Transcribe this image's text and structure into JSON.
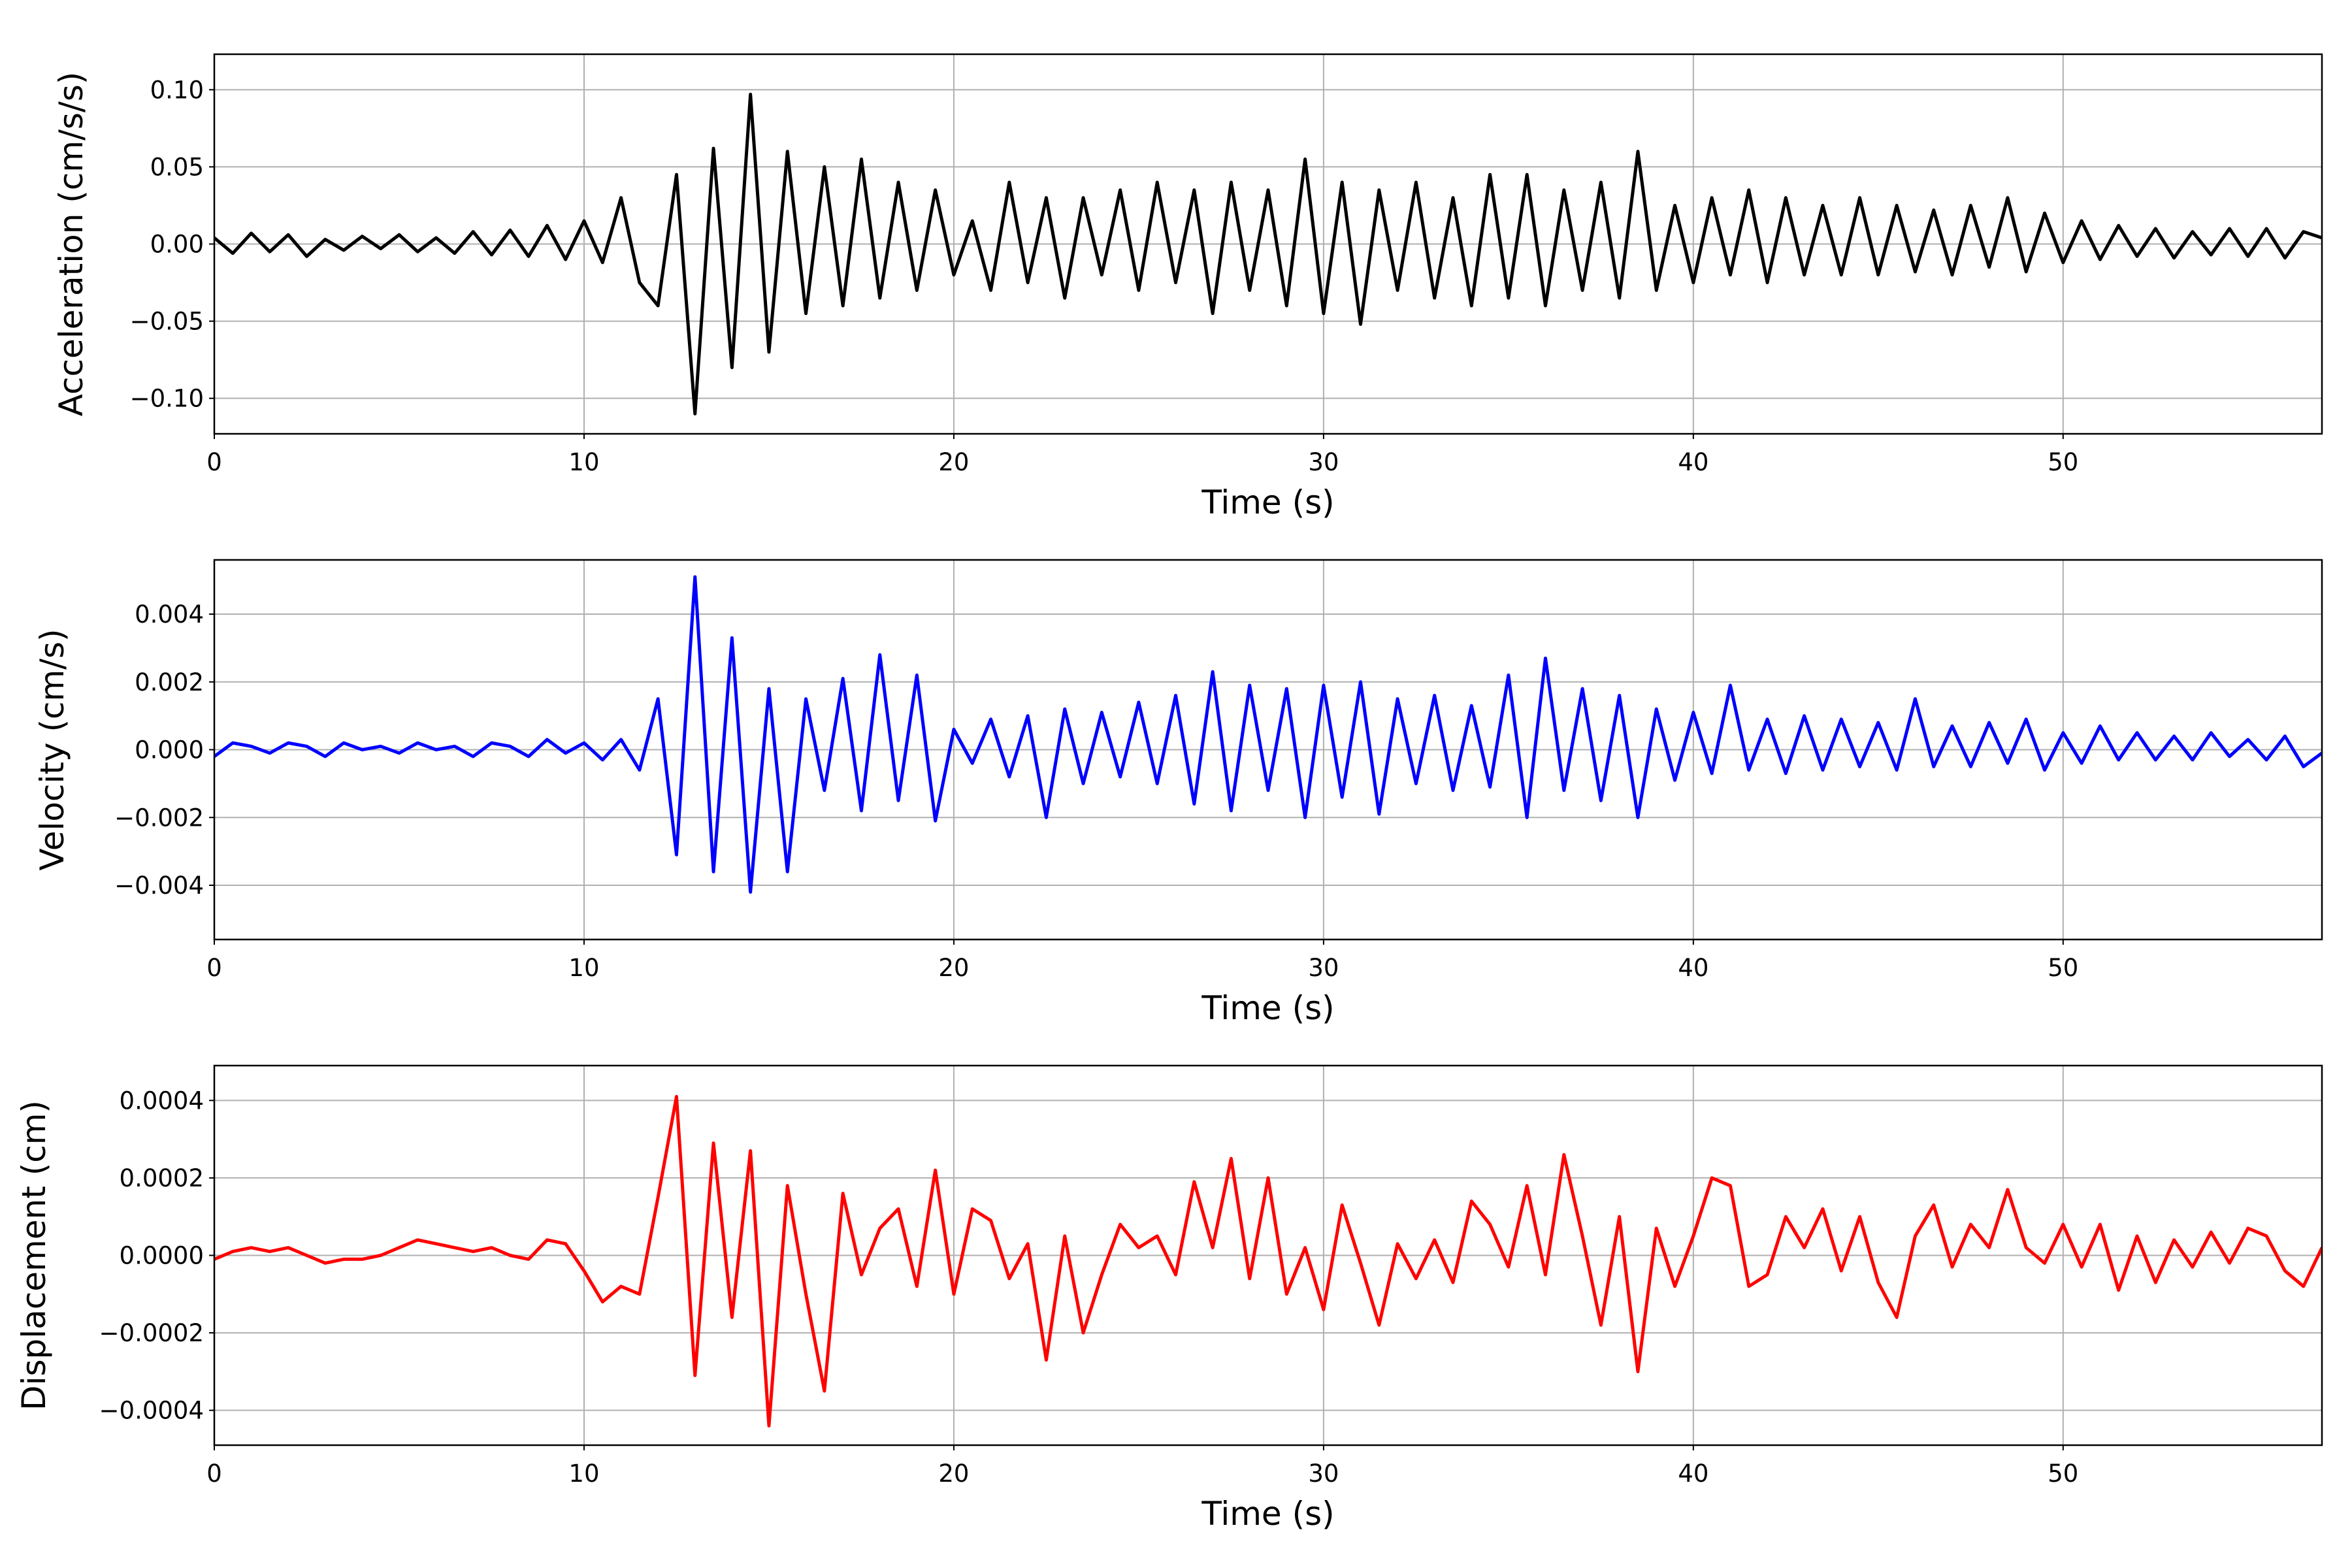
{
  "chart_data": [
    {
      "type": "line",
      "ylabel": "Acceleration (cm/s/s)",
      "xlabel": "Time (s)",
      "color": "#000000",
      "grid": true,
      "xlim": [
        0,
        57
      ],
      "xticks": [
        0,
        10,
        20,
        30,
        40,
        50
      ],
      "ylim": [
        -0.123,
        0.123
      ],
      "yticks": [
        {
          "value": -0.1,
          "label": "−0.10"
        },
        {
          "value": -0.05,
          "label": "−0.05"
        },
        {
          "value": 0,
          "label": "0.00"
        },
        {
          "value": 0.05,
          "label": "0.05"
        },
        {
          "value": 0.1,
          "label": "0.10"
        }
      ],
      "x": [
        0,
        0.5,
        1,
        1.5,
        2,
        2.5,
        3,
        3.5,
        4,
        4.5,
        5,
        5.5,
        6,
        6.5,
        7,
        7.5,
        8,
        8.5,
        9,
        9.5,
        10,
        10.5,
        11,
        11.5,
        12,
        12.5,
        13,
        13.5,
        14,
        14.5,
        15,
        15.5,
        16,
        16.5,
        17,
        17.5,
        18,
        18.5,
        19,
        19.5,
        20,
        20.5,
        21,
        21.5,
        22,
        22.5,
        23,
        23.5,
        24,
        24.5,
        25,
        25.5,
        26,
        26.5,
        27,
        27.5,
        28,
        28.5,
        29,
        29.5,
        30,
        30.5,
        31,
        31.5,
        32,
        32.5,
        33,
        33.5,
        34,
        34.5,
        35,
        35.5,
        36,
        36.5,
        37,
        37.5,
        38,
        38.5,
        39,
        39.5,
        40,
        40.5,
        41,
        41.5,
        42,
        42.5,
        43,
        43.5,
        44,
        44.5,
        45,
        45.5,
        46,
        46.5,
        47,
        47.5,
        48,
        48.5,
        49,
        49.5,
        50,
        50.5,
        51,
        51.5,
        52,
        52.5,
        53,
        53.5,
        54,
        54.5,
        55,
        55.5,
        56,
        56.5,
        57
      ],
      "values": [
        0.004,
        -0.006,
        0.007,
        -0.005,
        0.006,
        -0.008,
        0.003,
        -0.004,
        0.005,
        -0.003,
        0.006,
        -0.005,
        0.004,
        -0.006,
        0.008,
        -0.007,
        0.009,
        -0.008,
        0.012,
        -0.01,
        0.015,
        -0.012,
        0.03,
        -0.025,
        -0.04,
        0.045,
        -0.11,
        0.062,
        -0.08,
        0.097,
        -0.07,
        0.06,
        -0.045,
        0.05,
        -0.04,
        0.055,
        -0.035,
        0.04,
        -0.03,
        0.035,
        -0.02,
        0.015,
        -0.03,
        0.04,
        -0.025,
        0.03,
        -0.035,
        0.03,
        -0.02,
        0.035,
        -0.03,
        0.04,
        -0.025,
        0.035,
        -0.045,
        0.04,
        -0.03,
        0.035,
        -0.04,
        0.055,
        -0.045,
        0.04,
        -0.052,
        0.035,
        -0.03,
        0.04,
        -0.035,
        0.03,
        -0.04,
        0.045,
        -0.035,
        0.045,
        -0.04,
        0.035,
        -0.03,
        0.04,
        -0.035,
        0.06,
        -0.03,
        0.025,
        -0.025,
        0.03,
        -0.02,
        0.035,
        -0.025,
        0.03,
        -0.02,
        0.025,
        -0.02,
        0.03,
        -0.02,
        0.025,
        -0.018,
        0.022,
        -0.02,
        0.025,
        -0.015,
        0.03,
        -0.018,
        0.02,
        -0.012,
        0.015,
        -0.01,
        0.012,
        -0.008,
        0.01,
        -0.009,
        0.008,
        -0.007,
        0.01,
        -0.008,
        0.01,
        -0.009,
        0.008,
        0.004
      ]
    },
    {
      "type": "line",
      "ylabel": "Velocity (cm/s)",
      "xlabel": "Time (s)",
      "color": "#0000ff",
      "grid": true,
      "xlim": [
        0,
        57
      ],
      "xticks": [
        0,
        10,
        20,
        30,
        40,
        50
      ],
      "ylim": [
        -0.0056,
        0.0056
      ],
      "yticks": [
        {
          "value": -0.004,
          "label": "−0.004"
        },
        {
          "value": -0.002,
          "label": "−0.002"
        },
        {
          "value": 0,
          "label": "0.000"
        },
        {
          "value": 0.002,
          "label": "0.002"
        },
        {
          "value": 0.004,
          "label": "0.004"
        }
      ],
      "x": [
        0,
        0.5,
        1,
        1.5,
        2,
        2.5,
        3,
        3.5,
        4,
        4.5,
        5,
        5.5,
        6,
        6.5,
        7,
        7.5,
        8,
        8.5,
        9,
        9.5,
        10,
        10.5,
        11,
        11.5,
        12,
        12.5,
        13,
        13.5,
        14,
        14.5,
        15,
        15.5,
        16,
        16.5,
        17,
        17.5,
        18,
        18.5,
        19,
        19.5,
        20,
        20.5,
        21,
        21.5,
        22,
        22.5,
        23,
        23.5,
        24,
        24.5,
        25,
        25.5,
        26,
        26.5,
        27,
        27.5,
        28,
        28.5,
        29,
        29.5,
        30,
        30.5,
        31,
        31.5,
        32,
        32.5,
        33,
        33.5,
        34,
        34.5,
        35,
        35.5,
        36,
        36.5,
        37,
        37.5,
        38,
        38.5,
        39,
        39.5,
        40,
        40.5,
        41,
        41.5,
        42,
        42.5,
        43,
        43.5,
        44,
        44.5,
        45,
        45.5,
        46,
        46.5,
        47,
        47.5,
        48,
        48.5,
        49,
        49.5,
        50,
        50.5,
        51,
        51.5,
        52,
        52.5,
        53,
        53.5,
        54,
        54.5,
        55,
        55.5,
        56,
        56.5,
        57
      ],
      "values": [
        -0.0002,
        0.0002,
        0.0001,
        -0.0001,
        0.0002,
        0.0001,
        -0.0002,
        0.0002,
        0,
        0.0001,
        -0.0001,
        0.0002,
        0,
        0.0001,
        -0.0002,
        0.0002,
        0.0001,
        -0.0002,
        0.0003,
        -0.0001,
        0.0002,
        -0.0003,
        0.0003,
        -0.0006,
        0.0015,
        -0.0031,
        0.0051,
        -0.0036,
        0.0033,
        -0.0042,
        0.0018,
        -0.0036,
        0.0015,
        -0.0012,
        0.0021,
        -0.0018,
        0.0028,
        -0.0015,
        0.0022,
        -0.0021,
        0.0006,
        -0.0004,
        0.0009,
        -0.0008,
        0.001,
        -0.002,
        0.0012,
        -0.001,
        0.0011,
        -0.0008,
        0.0014,
        -0.001,
        0.0016,
        -0.0016,
        0.0023,
        -0.0018,
        0.0019,
        -0.0012,
        0.0018,
        -0.002,
        0.0019,
        -0.0014,
        0.002,
        -0.0019,
        0.0015,
        -0.001,
        0.0016,
        -0.0012,
        0.0013,
        -0.0011,
        0.0022,
        -0.002,
        0.0027,
        -0.0012,
        0.0018,
        -0.0015,
        0.0016,
        -0.002,
        0.0012,
        -0.0009,
        0.0011,
        -0.0007,
        0.0019,
        -0.0006,
        0.0009,
        -0.0007,
        0.001,
        -0.0006,
        0.0009,
        -0.0005,
        0.0008,
        -0.0006,
        0.0015,
        -0.0005,
        0.0007,
        -0.0005,
        0.0008,
        -0.0004,
        0.0009,
        -0.0006,
        0.0005,
        -0.0004,
        0.0007,
        -0.0003,
        0.0005,
        -0.0003,
        0.0004,
        -0.0003,
        0.0005,
        -0.0002,
        0.0003,
        -0.0003,
        0.0004,
        -0.0005,
        -0.0001
      ]
    },
    {
      "type": "line",
      "ylabel": "Displacement (cm)",
      "xlabel": "Time (s)",
      "color": "#ff0000",
      "grid": true,
      "xlim": [
        0,
        57
      ],
      "xticks": [
        0,
        10,
        20,
        30,
        40,
        50
      ],
      "ylim": [
        -0.00049,
        0.00049
      ],
      "yticks": [
        {
          "value": -0.0004,
          "label": "−0.0004"
        },
        {
          "value": -0.0002,
          "label": "−0.0002"
        },
        {
          "value": 0,
          "label": "0.0000"
        },
        {
          "value": 0.0002,
          "label": "0.0002"
        },
        {
          "value": 0.0004,
          "label": "0.0004"
        }
      ],
      "x": [
        0,
        0.5,
        1,
        1.5,
        2,
        2.5,
        3,
        3.5,
        4,
        4.5,
        5,
        5.5,
        6,
        6.5,
        7,
        7.5,
        8,
        8.5,
        9,
        9.5,
        10,
        10.5,
        11,
        11.5,
        12,
        12.5,
        13,
        13.5,
        14,
        14.5,
        15,
        15.5,
        16,
        16.5,
        17,
        17.5,
        18,
        18.5,
        19,
        19.5,
        20,
        20.5,
        21,
        21.5,
        22,
        22.5,
        23,
        23.5,
        24,
        24.5,
        25,
        25.5,
        26,
        26.5,
        27,
        27.5,
        28,
        28.5,
        29,
        29.5,
        30,
        30.5,
        31,
        31.5,
        32,
        32.5,
        33,
        33.5,
        34,
        34.5,
        35,
        35.5,
        36,
        36.5,
        37,
        37.5,
        38,
        38.5,
        39,
        39.5,
        40,
        40.5,
        41,
        41.5,
        42,
        42.5,
        43,
        43.5,
        44,
        44.5,
        45,
        45.5,
        46,
        46.5,
        47,
        47.5,
        48,
        48.5,
        49,
        49.5,
        50,
        50.5,
        51,
        51.5,
        52,
        52.5,
        53,
        53.5,
        54,
        54.5,
        55,
        55.5,
        56,
        56.5,
        57
      ],
      "values": [
        -1e-05,
        1e-05,
        2e-05,
        1e-05,
        2e-05,
        0,
        -2e-05,
        -1e-05,
        -1e-05,
        0,
        2e-05,
        4e-05,
        3e-05,
        2e-05,
        1e-05,
        2e-05,
        0,
        -1e-05,
        4e-05,
        3e-05,
        -4e-05,
        -0.00012,
        -8e-05,
        -0.0001,
        0.00015,
        0.00041,
        -0.00031,
        0.00029,
        -0.00016,
        0.00027,
        -0.00044,
        0.00018,
        -0.0001,
        -0.00035,
        0.00016,
        -5e-05,
        7e-05,
        0.00012,
        -8e-05,
        0.00022,
        -0.0001,
        0.00012,
        9e-05,
        -6e-05,
        3e-05,
        -0.00027,
        5e-05,
        -0.0002,
        -5e-05,
        8e-05,
        2e-05,
        5e-05,
        -5e-05,
        0.00019,
        2e-05,
        0.00025,
        -6e-05,
        0.0002,
        -0.0001,
        2e-05,
        -0.00014,
        0.00013,
        -2e-05,
        -0.00018,
        3e-05,
        -6e-05,
        4e-05,
        -7e-05,
        0.00014,
        8e-05,
        -3e-05,
        0.00018,
        -5e-05,
        0.00026,
        5e-05,
        -0.00018,
        0.0001,
        -0.0003,
        7e-05,
        -8e-05,
        5e-05,
        0.0002,
        0.00018,
        -8e-05,
        -5e-05,
        0.0001,
        2e-05,
        0.00012,
        -4e-05,
        0.0001,
        -7e-05,
        -0.00016,
        5e-05,
        0.00013,
        -3e-05,
        8e-05,
        2e-05,
        0.00017,
        2e-05,
        -2e-05,
        8e-05,
        -3e-05,
        8e-05,
        -9e-05,
        5e-05,
        -7e-05,
        4e-05,
        -3e-05,
        6e-05,
        -2e-05,
        7e-05,
        5e-05,
        -4e-05,
        -8e-05,
        2e-05
      ]
    }
  ]
}
